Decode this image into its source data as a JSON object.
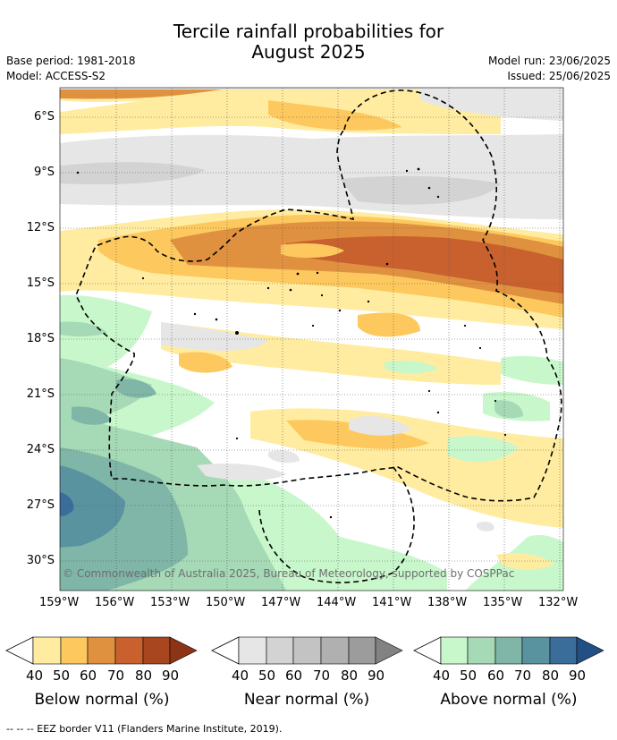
{
  "title": {
    "line1": "Tercile rainfall probabilities for",
    "line2": "August 2025"
  },
  "info_left": {
    "base_period": "Base period: 1981-2018",
    "model": "Model: ACCESS-S2"
  },
  "info_right": {
    "model_run": "Model run: 23/06/2025",
    "issued": "Issued: 25/06/2025"
  },
  "map": {
    "lat_labels": [
      "6°S",
      "9°S",
      "12°S",
      "15°S",
      "18°S",
      "21°S",
      "24°S",
      "27°S",
      "30°S"
    ],
    "lon_labels": [
      "159°W",
      "156°W",
      "153°W",
      "150°W",
      "147°W",
      "144°W",
      "141°W",
      "138°W",
      "135°W",
      "132°W"
    ],
    "copyright": "© Commonwealth of Australia 2025, Bureau of Meteorology, supported by COSPPac"
  },
  "colorbars": [
    {
      "label": "Below normal (%)",
      "ticks": [
        "40",
        "50",
        "60",
        "70",
        "80",
        "90"
      ],
      "colors": [
        "#ffeca0",
        "#fdc95f",
        "#e0913f",
        "#c9612f",
        "#a8461f",
        "#8e3416"
      ]
    },
    {
      "label": "Near normal (%)",
      "ticks": [
        "40",
        "50",
        "60",
        "70",
        "80",
        "90"
      ],
      "colors": [
        "#e6e6e6",
        "#d3d3d3",
        "#c3c3c3",
        "#b0b0b0",
        "#9c9c9c",
        "#828282"
      ]
    },
    {
      "label": "Above normal (%)",
      "ticks": [
        "40",
        "50",
        "60",
        "70",
        "80",
        "90"
      ],
      "colors": [
        "#c8f7cb",
        "#a6d9b6",
        "#7fb6a7",
        "#5a93a0",
        "#3b6d9a",
        "#214f86"
      ]
    }
  ],
  "footnote": "--  --  -- EEZ border V11 (Flanders Marine Institute, 2019)."
}
